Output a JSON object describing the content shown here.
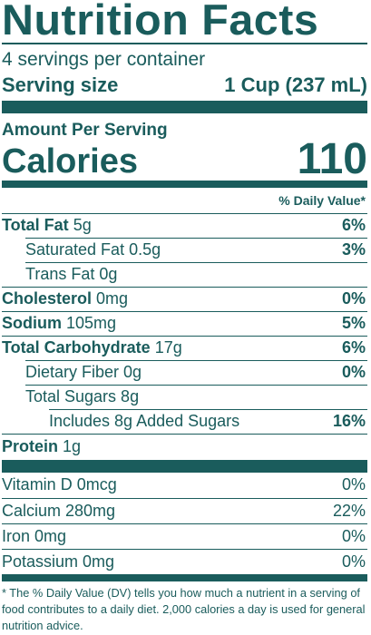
{
  "title": "Nutrition Facts",
  "servings_per_container": "4 servings per container",
  "serving_size": {
    "label": "Serving size",
    "value": "1 Cup (237 mL)"
  },
  "amount_per_serving": "Amount Per Serving",
  "calories": {
    "label": "Calories",
    "value": "110"
  },
  "daily_value_header": "% Daily Value*",
  "nutrients": {
    "total_fat": {
      "label": "Total Fat",
      "amount": "5g",
      "dv": "6%"
    },
    "saturated_fat": {
      "label": "Saturated Fat 0.5g",
      "dv": "3%"
    },
    "trans_fat": {
      "label": "Trans Fat 0g"
    },
    "cholesterol": {
      "label": "Cholesterol",
      "amount": "0mg",
      "dv": "0%"
    },
    "sodium": {
      "label": "Sodium",
      "amount": "105mg",
      "dv": "5%"
    },
    "total_carbohydrate": {
      "label": "Total Carbohydrate",
      "amount": "17g",
      "dv": "6%"
    },
    "dietary_fiber": {
      "label": "Dietary Fiber 0g",
      "dv": "0%"
    },
    "total_sugars": {
      "label": "Total Sugars 8g"
    },
    "added_sugars": {
      "label": "Includes 8g Added Sugars",
      "dv": "16%"
    },
    "protein": {
      "label": "Protein",
      "amount": "1g"
    }
  },
  "minerals": {
    "vitamin_d": {
      "label": "Vitamin D 0mcg",
      "dv": "0%"
    },
    "calcium": {
      "label": "Calcium 280mg",
      "dv": "22%"
    },
    "iron": {
      "label": "Iron 0mg",
      "dv": "0%"
    },
    "potassium": {
      "label": "Potassium 0mg",
      "dv": "0%"
    }
  },
  "footnote": "* The % Daily Value (DV) tells you how much a nutrient in a serving of food contributes to a daily diet. 2,000 calories a day is used for general nutrition advice.",
  "colors": {
    "ink": "#1a5c5c",
    "background": "#ffffff"
  }
}
